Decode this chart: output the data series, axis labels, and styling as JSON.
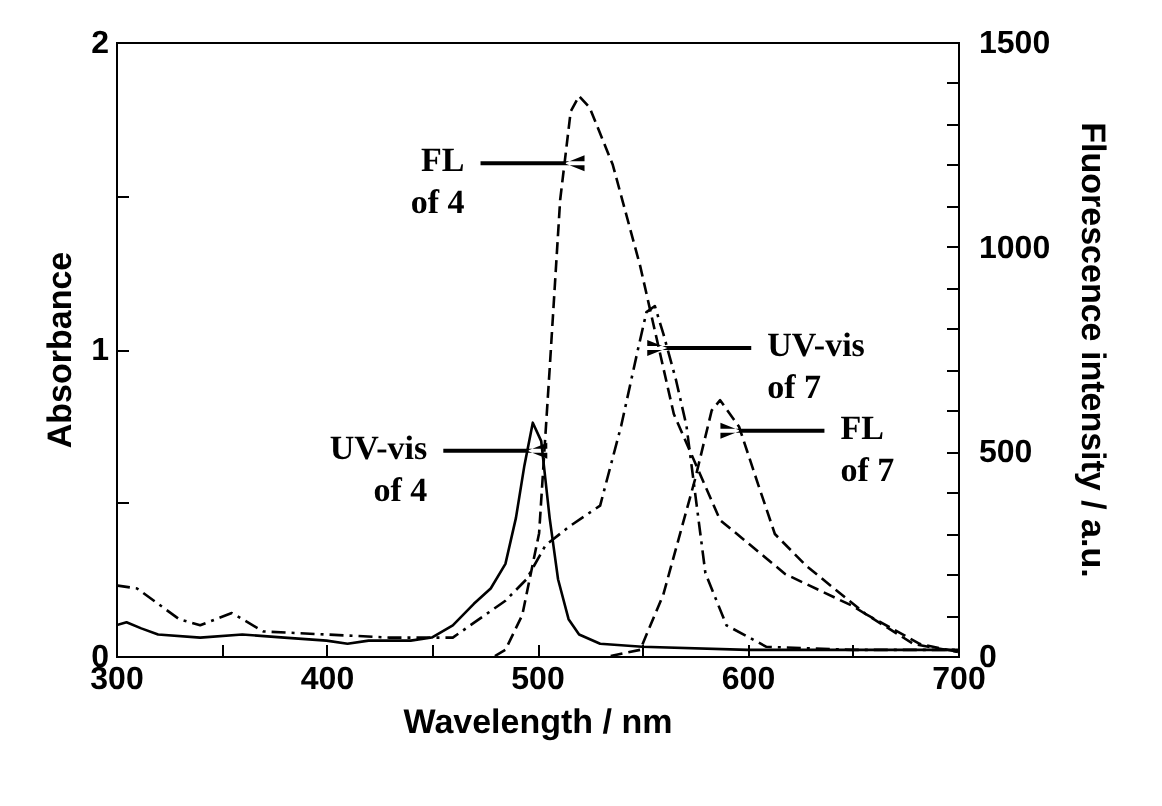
{
  "chart_data": {
    "type": "line",
    "xlabel": "Wavelength  /  nm",
    "ylabel": "Absorbance",
    "y2label": "Fluorescence intensity  /  a.u.",
    "xlim": [
      300,
      700
    ],
    "xticks": [
      300,
      {
        "value": 350,
        "label": null
      },
      400,
      {
        "value": 450,
        "label": null
      },
      500,
      {
        "value": 550,
        "label": null
      },
      600,
      {
        "value": 650,
        "label": null
      },
      700
    ],
    "ylim": [
      0,
      2
    ],
    "yticks": [
      0,
      {
        "value": 0.5,
        "label": null
      },
      1,
      {
        "value": 1.5,
        "label": null
      },
      2
    ],
    "y2lim": [
      0,
      1500
    ],
    "y2ticks": [
      0,
      {
        "value": 100,
        "label": null
      },
      {
        "value": 200,
        "label": null
      },
      {
        "value": 300,
        "label": null
      },
      {
        "value": 400,
        "label": null
      },
      500,
      {
        "value": 600,
        "label": null
      },
      {
        "value": 700,
        "label": null
      },
      {
        "value": 800,
        "label": null
      },
      {
        "value": 900,
        "label": null
      },
      1000,
      {
        "value": 1100,
        "label": null
      },
      {
        "value": 1200,
        "label": null
      },
      {
        "value": 1300,
        "label": null
      },
      {
        "value": 1400,
        "label": null
      },
      1500
    ],
    "grid": false,
    "marker": "none",
    "series": [
      {
        "color": "#000000",
        "line_style": "solid",
        "x": [
          300,
          305,
          312,
          320,
          340,
          360,
          380,
          400,
          410,
          420,
          440,
          450,
          460,
          470,
          478,
          485,
          490,
          494,
          498,
          502,
          506,
          510,
          515,
          520,
          530,
          550,
          600,
          650,
          700
        ],
        "values": [
          0.1,
          0.11,
          0.09,
          0.07,
          0.06,
          0.07,
          0.06,
          0.05,
          0.04,
          0.05,
          0.05,
          0.06,
          0.1,
          0.17,
          0.22,
          0.3,
          0.45,
          0.62,
          0.76,
          0.7,
          0.45,
          0.25,
          0.12,
          0.07,
          0.04,
          0.03,
          0.02,
          0.02,
          0.02
        ]
      },
      {
        "color": "#000000",
        "line_style": "dotted",
        "x": [
          300,
          310,
          320,
          330,
          340,
          355,
          370,
          400,
          430,
          460,
          485,
          495,
          504,
          515,
          530,
          540,
          548,
          552,
          556,
          560,
          566,
          571,
          580,
          590,
          609,
          650,
          700
        ],
        "values": [
          0.23,
          0.22,
          0.17,
          0.12,
          0.1,
          0.14,
          0.08,
          0.07,
          0.06,
          0.06,
          0.18,
          0.25,
          0.36,
          0.42,
          0.49,
          0.75,
          1.0,
          1.12,
          1.14,
          1.05,
          0.9,
          0.75,
          0.27,
          0.1,
          0.03,
          0.02,
          0.02
        ]
      },
      {
        "color": "#000000",
        "line_style": "dashed",
        "axis": "y2",
        "x": [
          480,
          485,
          493,
          501,
          506,
          511,
          516,
          520,
          525,
          536,
          549,
          565,
          587,
          618,
          650,
          679,
          700
        ],
        "values": [
          0,
          15,
          100,
          300,
          700,
          1114,
          1330,
          1368,
          1340,
          1200,
          953,
          591,
          332,
          200,
          122,
          29,
          10
        ]
      },
      {
        "color": "#000000",
        "line_style": "dashed",
        "axis": "y2",
        "x": [
          535,
          549,
          560,
          575,
          583,
          587,
          596,
          605,
          613,
          628,
          656,
          682,
          700
        ],
        "values": [
          0,
          15,
          150,
          430,
          600,
          625,
          560,
          420,
          298,
          220,
          103,
          29,
          10
        ]
      }
    ],
    "annotations": [
      "UV-vis of 4",
      "UV-vis of 7",
      "FL of 4",
      "FL of 7"
    ]
  }
}
